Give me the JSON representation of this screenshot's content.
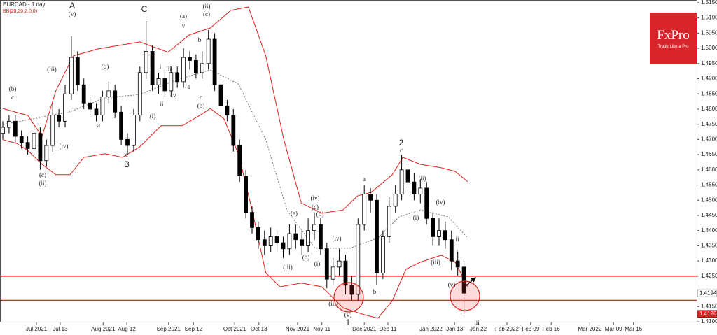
{
  "chart_data": {
    "type": "candlestick",
    "title": "EURCAD - 1 day",
    "indicator": "BB(20,20,2.0,0)",
    "logo": {
      "name": "FxPro",
      "tagline": "Trade Like a Pro"
    },
    "ohlc": {
      "open": [
        1.472,
        1.474,
        1.476,
        1.471,
        1.469,
        1.467,
        1.472,
        1.463,
        1.468,
        1.478,
        1.476,
        1.485,
        1.497,
        1.488,
        1.482,
        1.48,
        1.478,
        1.484,
        1.486,
        1.479,
        1.47,
        1.468,
        1.478,
        1.492,
        1.499,
        1.488,
        1.49,
        1.486,
        1.492,
        1.489,
        1.497,
        1.496,
        1.492,
        1.495,
        1.503,
        1.488,
        1.481,
        1.478,
        1.468,
        1.458,
        1.446,
        1.441,
        1.437,
        1.435,
        1.438,
        1.436,
        1.434,
        1.439,
        1.437,
        1.435,
        1.44,
        1.442,
        1.434,
        1.424,
        1.428,
        1.43,
        1.422,
        1.419,
        1.442,
        1.452,
        1.45,
        1.426,
        1.438,
        1.448,
        1.452,
        1.46,
        1.456,
        1.452,
        1.454,
        1.444,
        1.438,
        1.44,
        1.437,
        1.43,
        1.428
      ],
      "high": [
        1.476,
        1.478,
        1.478,
        1.473,
        1.471,
        1.474,
        1.474,
        1.47,
        1.482,
        1.48,
        1.488,
        1.504,
        1.499,
        1.49,
        1.484,
        1.482,
        1.486,
        1.489,
        1.488,
        1.481,
        1.472,
        1.48,
        1.494,
        1.509,
        1.501,
        1.492,
        1.493,
        1.494,
        1.494,
        1.5,
        1.499,
        1.498,
        1.499,
        1.506,
        1.505,
        1.49,
        1.483,
        1.48,
        1.47,
        1.46,
        1.448,
        1.443,
        1.44,
        1.441,
        1.44,
        1.438,
        1.442,
        1.442,
        1.44,
        1.444,
        1.446,
        1.444,
        1.436,
        1.431,
        1.434,
        1.432,
        1.425,
        1.444,
        1.455,
        1.454,
        1.452,
        1.44,
        1.451,
        1.455,
        1.465,
        1.462,
        1.459,
        1.457,
        1.456,
        1.446,
        1.444,
        1.443,
        1.44,
        1.433,
        1.43
      ],
      "low": [
        1.47,
        1.472,
        1.469,
        1.467,
        1.465,
        1.465,
        1.46,
        1.461,
        1.466,
        1.474,
        1.474,
        1.483,
        1.486,
        1.48,
        1.478,
        1.476,
        1.476,
        1.482,
        1.477,
        1.468,
        1.465,
        1.466,
        1.476,
        1.49,
        1.486,
        1.485,
        1.484,
        1.484,
        1.487,
        1.487,
        1.493,
        1.49,
        1.49,
        1.493,
        1.486,
        1.479,
        1.476,
        1.466,
        1.456,
        1.444,
        1.439,
        1.434,
        1.432,
        1.433,
        1.433,
        1.431,
        1.432,
        1.434,
        1.432,
        1.433,
        1.437,
        1.432,
        1.421,
        1.422,
        1.425,
        1.419,
        1.417,
        1.417,
        1.44,
        1.446,
        1.422,
        1.424,
        1.436,
        1.446,
        1.45,
        1.454,
        1.45,
        1.449,
        1.442,
        1.435,
        1.435,
        1.434,
        1.427,
        1.425,
        1.4126
      ],
      "close": [
        1.474,
        1.476,
        1.471,
        1.469,
        1.467,
        1.472,
        1.463,
        1.468,
        1.478,
        1.476,
        1.485,
        1.497,
        1.488,
        1.482,
        1.48,
        1.478,
        1.484,
        1.486,
        1.479,
        1.47,
        1.468,
        1.478,
        1.492,
        1.499,
        1.488,
        1.49,
        1.486,
        1.492,
        1.489,
        1.497,
        1.496,
        1.492,
        1.495,
        1.503,
        1.488,
        1.481,
        1.478,
        1.468,
        1.458,
        1.446,
        1.441,
        1.437,
        1.435,
        1.438,
        1.436,
        1.434,
        1.439,
        1.437,
        1.435,
        1.44,
        1.442,
        1.434,
        1.424,
        1.428,
        1.43,
        1.422,
        1.419,
        1.442,
        1.452,
        1.45,
        1.426,
        1.438,
        1.448,
        1.452,
        1.46,
        1.456,
        1.452,
        1.454,
        1.444,
        1.438,
        1.44,
        1.437,
        1.43,
        1.428,
        1.4194
      ]
    },
    "bands": [
      {
        "color": "#e0201b",
        "dashed": false,
        "x": [
          0,
          4.0,
          6.3,
          8.5,
          11.3,
          15.3,
          22.0,
          26.5,
          29.9,
          33.3,
          36.6,
          39.4,
          42.2,
          45.1,
          47.9,
          51.2,
          54.6,
          56.9,
          59.1,
          62.5,
          64.2,
          67.0,
          70.3,
          72.6,
          74.6
        ],
        "values": [
          1.4802,
          1.4779,
          1.471,
          1.486,
          1.4975,
          1.4998,
          1.5021,
          1.4987,
          1.5044,
          1.5067,
          1.5125,
          1.5136,
          1.4975,
          1.4699,
          1.4491,
          1.4457,
          1.4468,
          1.4514,
          1.4526,
          1.4584,
          1.4641,
          1.4618,
          1.4607,
          1.4595,
          1.4561
        ]
      },
      {
        "color": "#e0201b",
        "dashed": false,
        "x": [
          0,
          2.2,
          4.0,
          6.3,
          8.5,
          10.8,
          13.0,
          16.4,
          19.2,
          22.0,
          25.4,
          28.8,
          31.6,
          33.3,
          35.5,
          37.8,
          40.0,
          42.2,
          44.5,
          47.9,
          51.2,
          54.6,
          58.0,
          60.2,
          62.5,
          64.7,
          67.0,
          70.3,
          72.6,
          74.6
        ],
        "values": [
          1.4699,
          1.4687,
          1.4664,
          1.4618,
          1.4584,
          1.4584,
          1.4641,
          1.4653,
          1.4641,
          1.4676,
          1.4745,
          1.4745,
          1.4779,
          1.4802,
          1.4768,
          1.4653,
          1.4468,
          1.4261,
          1.4215,
          1.4227,
          1.4215,
          1.4146,
          1.4123,
          1.4112,
          1.4169,
          1.4273,
          1.4296,
          1.4319,
          1.4296,
          1.4215
        ]
      },
      {
        "color": "#777777",
        "dashed": true,
        "x": [
          0,
          10.8,
          16.4,
          22.0,
          27.6,
          33.3,
          37.8,
          42.2,
          45.6,
          50.1,
          55.7,
          60.2,
          63.6,
          67.0,
          71.5,
          74.6
        ],
        "values": [
          1.4749,
          1.4791,
          1.4837,
          1.4848,
          1.4894,
          1.4929,
          1.4883,
          1.4699,
          1.4468,
          1.4342,
          1.4342,
          1.4376,
          1.4445,
          1.4468,
          1.4445,
          1.4376
        ]
      }
    ],
    "levels": [
      1.425,
      1.417
    ],
    "level_color": "#e0201b",
    "annotations": [
      "(b)",
      "c",
      "(c)",
      "(ii)",
      "A",
      "(v)",
      "(iii)",
      "(iv)",
      "(b)",
      "a",
      "c",
      "B",
      "C",
      "(i)",
      "(a)",
      "v",
      "i",
      "b",
      "ii",
      "iv",
      "iii",
      "a",
      "c",
      "(b)",
      "(ii)",
      "(c)",
      "(a)",
      "(iv)",
      "(c)",
      "(ii)",
      "(iii)",
      "(b)",
      "(i)",
      "(iv)",
      "(iii)",
      "(v)",
      "1",
      "a",
      "b",
      "c",
      "2",
      "(ii)",
      "(i)",
      "(iv)",
      "(iii)",
      "ii",
      "i",
      "(v)",
      "iii"
    ],
    "xlim": [
      -0.45,
      111.35
    ],
    "ylim": [
      1.41,
      1.5159
    ],
    "xticks": [
      {
        "value": 5.4,
        "label": "Jul 2021"
      },
      {
        "value": 9.2,
        "label": "Jul 13"
      },
      {
        "value": 16.1,
        "label": "Aug 2021"
      },
      {
        "value": 19.9,
        "label": "Aug 12"
      },
      {
        "value": 26.6,
        "label": "Sep 2021"
      },
      {
        "value": 30.6,
        "label": "Sep 12"
      },
      {
        "value": 37.2,
        "label": "Oct 2021"
      },
      {
        "value": 41.1,
        "label": "Oct 13"
      },
      {
        "value": 47.3,
        "label": "Nov 2021"
      },
      {
        "value": 51.2,
        "label": "Nov 11"
      },
      {
        "value": 58.0,
        "label": "Dec 2021"
      },
      {
        "value": 61.8,
        "label": "Dec 11"
      },
      {
        "value": 68.7,
        "label": "Jan 2022"
      },
      {
        "value": 72.5,
        "label": "Jan 13"
      },
      {
        "value": 76.3,
        "label": "Jan 22"
      },
      {
        "value": 80.9,
        "label": "Feb 2022"
      },
      {
        "value": 84.7,
        "label": "Feb 09"
      },
      {
        "value": 88.0,
        "label": "Feb 16"
      },
      {
        "value": 94.2,
        "label": "Mar 2022"
      },
      {
        "value": 98.0,
        "label": "Mar 09"
      },
      {
        "value": 101.2,
        "label": "Mar 16"
      }
    ],
    "yticks": [
      {
        "value": 1.515,
        "label": "1.5150"
      },
      {
        "value": 1.51,
        "label": "1.5100"
      },
      {
        "value": 1.505,
        "label": "1.5050"
      },
      {
        "value": 1.5,
        "label": "1.5000"
      },
      {
        "value": 1.495,
        "label": "1.4950"
      },
      {
        "value": 1.49,
        "label": "1.4900"
      },
      {
        "value": 1.485,
        "label": "1.4850"
      },
      {
        "value": 1.48,
        "label": "1.4800"
      },
      {
        "value": 1.475,
        "label": "1.4750"
      },
      {
        "value": 1.47,
        "label": "1.4700"
      },
      {
        "value": 1.465,
        "label": "1.4650"
      },
      {
        "value": 1.46,
        "label": "1.4600"
      },
      {
        "value": 1.455,
        "label": "1.4550"
      },
      {
        "value": 1.45,
        "label": "1.4500"
      },
      {
        "value": 1.445,
        "label": "1.4450"
      },
      {
        "value": 1.44,
        "label": "1.4400"
      },
      {
        "value": 1.435,
        "label": "1.4350"
      },
      {
        "value": 1.43,
        "label": "1.4300"
      },
      {
        "value": 1.425,
        "label": "1.4250"
      },
      {
        "value": 1.415,
        "label": "1.4150"
      },
      {
        "value": 1.41,
        "label": "1.4100"
      }
    ]
  }
}
